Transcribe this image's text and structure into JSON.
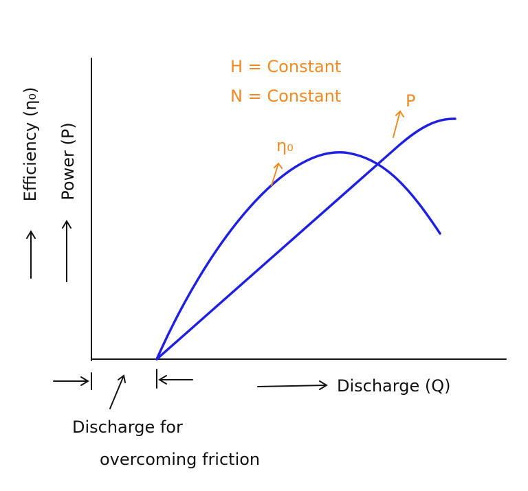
{
  "annotations": {
    "head": "H = Constant",
    "speed": "N = Constant"
  },
  "curves": {
    "efficiency": "η₀",
    "power": "P"
  },
  "axes": {
    "y_efficiency": "Efficiency (η₀)",
    "y_power": "Power (P)",
    "x": "Discharge (Q)"
  },
  "friction_note": {
    "line1": "Discharge for",
    "line2": "overcoming friction"
  }
}
